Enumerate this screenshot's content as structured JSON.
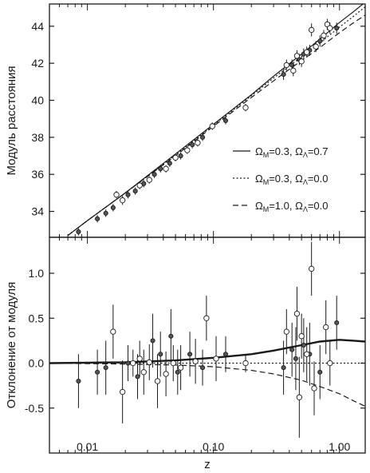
{
  "figure": {
    "xlabel": "z",
    "x_scale": "log",
    "xlim": [
      0.005,
      1.6
    ],
    "x_ticks": [
      0.01,
      0.1,
      1.0
    ],
    "x_tick_labels": [
      "0.01",
      "0.10",
      "1.00"
    ],
    "colors": {
      "axes": "#1a1a1a",
      "filled_marker": "#555555",
      "open_marker": "#ffffff"
    }
  },
  "chart_data": [
    {
      "type": "scatter",
      "ylabel": "Модуль  расстояния",
      "ylim": [
        32.6,
        45.2
      ],
      "y_ticks": [
        34,
        36,
        38,
        40,
        42,
        44
      ],
      "y_tick_labels": [
        "34",
        "36",
        "38",
        "40",
        "42",
        "44"
      ],
      "legend_position": "right",
      "legend": [
        {
          "name": "ΩM=0.3,  ΩΛ=0.7",
          "text_main": "Ω",
          "sub1": "M",
          "mid": "=0.3,  Ω",
          "sub2": "Λ",
          "tail": "=0.7",
          "style": "solid"
        },
        {
          "name": "ΩM=0.3,  ΩΛ=0.0",
          "text_main": "Ω",
          "sub1": "M",
          "mid": "=0.3,  Ω",
          "sub2": "Λ",
          "tail": "=0.0",
          "style": "dotted"
        },
        {
          "name": "ΩM=1.0,  ΩΛ=0.0",
          "text_main": "Ω",
          "sub1": "M",
          "mid": "=1.0,  Ω",
          "sub2": "Λ",
          "tail": "=0.0",
          "style": "dashed"
        }
      ],
      "model_curves": [
        {
          "style": "solid",
          "x": [
            0.007,
            0.01,
            0.02,
            0.05,
            0.1,
            0.2,
            0.3,
            0.5,
            0.7,
            1.0,
            1.3,
            1.6
          ],
          "y": [
            32.7,
            33.5,
            35.0,
            37.1,
            38.7,
            40.3,
            41.3,
            42.5,
            43.3,
            44.2,
            44.8,
            45.3
          ]
        },
        {
          "style": "dotted",
          "x": [
            0.007,
            0.01,
            0.02,
            0.05,
            0.1,
            0.2,
            0.3,
            0.5,
            0.7,
            1.0,
            1.3,
            1.6
          ],
          "y": [
            32.7,
            33.5,
            35.0,
            37.05,
            38.66,
            40.24,
            41.2,
            42.36,
            43.1,
            43.95,
            44.55,
            45.05
          ]
        },
        {
          "style": "dashed",
          "x": [
            0.007,
            0.01,
            0.02,
            0.05,
            0.1,
            0.2,
            0.3,
            0.5,
            0.7,
            1.0,
            1.3,
            1.6
          ],
          "y": [
            32.7,
            33.5,
            35.0,
            37.0,
            38.6,
            40.15,
            41.05,
            42.15,
            42.85,
            43.65,
            44.2,
            44.6
          ]
        }
      ],
      "points_open": [
        {
          "x": 0.017,
          "y": 34.9,
          "err": 0.2
        },
        {
          "x": 0.019,
          "y": 34.6,
          "err": 0.25
        },
        {
          "x": 0.026,
          "y": 35.4,
          "err": 0.2
        },
        {
          "x": 0.031,
          "y": 35.7,
          "err": 0.2
        },
        {
          "x": 0.042,
          "y": 36.3,
          "err": 0.2
        },
        {
          "x": 0.05,
          "y": 36.9,
          "err": 0.2
        },
        {
          "x": 0.062,
          "y": 37.3,
          "err": 0.2
        },
        {
          "x": 0.075,
          "y": 37.7,
          "err": 0.2
        },
        {
          "x": 0.098,
          "y": 38.6,
          "err": 0.2
        },
        {
          "x": 0.18,
          "y": 39.6,
          "err": 0.2
        },
        {
          "x": 0.38,
          "y": 41.9,
          "err": 0.3
        },
        {
          "x": 0.43,
          "y": 41.6,
          "err": 0.3
        },
        {
          "x": 0.46,
          "y": 42.4,
          "err": 0.3
        },
        {
          "x": 0.5,
          "y": 42.1,
          "err": 0.3
        },
        {
          "x": 0.55,
          "y": 42.6,
          "err": 0.3
        },
        {
          "x": 0.6,
          "y": 43.8,
          "err": 0.35
        },
        {
          "x": 0.65,
          "y": 42.9,
          "err": 0.3
        },
        {
          "x": 0.75,
          "y": 43.5,
          "err": 0.3
        },
        {
          "x": 0.8,
          "y": 44.1,
          "err": 0.3
        },
        {
          "x": 0.84,
          "y": 43.9,
          "err": 0.3
        }
      ],
      "points_filled": [
        {
          "x": 0.0085,
          "y": 32.9,
          "err": 0.2
        },
        {
          "x": 0.012,
          "y": 33.6,
          "err": 0.2
        },
        {
          "x": 0.014,
          "y": 33.9,
          "err": 0.2
        },
        {
          "x": 0.016,
          "y": 34.2,
          "err": 0.2
        },
        {
          "x": 0.021,
          "y": 34.9,
          "err": 0.2
        },
        {
          "x": 0.024,
          "y": 35.1,
          "err": 0.2
        },
        {
          "x": 0.028,
          "y": 35.5,
          "err": 0.2
        },
        {
          "x": 0.034,
          "y": 36.0,
          "err": 0.2
        },
        {
          "x": 0.038,
          "y": 36.3,
          "err": 0.2
        },
        {
          "x": 0.045,
          "y": 36.6,
          "err": 0.2
        },
        {
          "x": 0.055,
          "y": 37.0,
          "err": 0.2
        },
        {
          "x": 0.068,
          "y": 37.6,
          "err": 0.2
        },
        {
          "x": 0.082,
          "y": 38.0,
          "err": 0.2
        },
        {
          "x": 0.125,
          "y": 38.9,
          "err": 0.2
        },
        {
          "x": 0.36,
          "y": 41.4,
          "err": 0.3
        },
        {
          "x": 0.42,
          "y": 41.9,
          "err": 0.3
        },
        {
          "x": 0.48,
          "y": 42.2,
          "err": 0.3
        },
        {
          "x": 0.52,
          "y": 42.5,
          "err": 0.3
        },
        {
          "x": 0.58,
          "y": 42.7,
          "err": 0.3
        },
        {
          "x": 0.7,
          "y": 43.2,
          "err": 0.3
        },
        {
          "x": 0.95,
          "y": 43.9,
          "err": 0.3
        }
      ]
    },
    {
      "type": "scatter",
      "ylabel": "Отклонение  от  модуля",
      "ylim": [
        -1.0,
        1.4
      ],
      "y_ticks": [
        -0.5,
        0.0,
        0.5,
        1.0
      ],
      "y_tick_labels": [
        "-0.5",
        "0.0",
        "0.5",
        "1.0"
      ],
      "model_curves": [
        {
          "style": "solid",
          "x": [
            0.005,
            0.01,
            0.02,
            0.05,
            0.1,
            0.2,
            0.3,
            0.5,
            0.7,
            1.0,
            1.3,
            1.6
          ],
          "y": [
            0.0,
            0.005,
            0.01,
            0.03,
            0.06,
            0.1,
            0.14,
            0.2,
            0.24,
            0.26,
            0.25,
            0.24
          ]
        },
        {
          "style": "dotted",
          "x": [
            0.005,
            1.6
          ],
          "y": [
            0.0,
            0.0
          ]
        },
        {
          "style": "dashed",
          "x": [
            0.005,
            0.01,
            0.02,
            0.05,
            0.1,
            0.2,
            0.3,
            0.5,
            0.7,
            1.0,
            1.3,
            1.6
          ],
          "y": [
            0.0,
            -0.005,
            -0.01,
            -0.02,
            -0.04,
            -0.08,
            -0.12,
            -0.19,
            -0.26,
            -0.34,
            -0.42,
            -0.48
          ]
        }
      ],
      "points_open": [
        {
          "x": 0.016,
          "y": 0.35,
          "err": 0.3
        },
        {
          "x": 0.019,
          "y": -0.32,
          "err": 0.35
        },
        {
          "x": 0.023,
          "y": 0.0,
          "err": 0.15
        },
        {
          "x": 0.026,
          "y": 0.05,
          "err": 0.2
        },
        {
          "x": 0.028,
          "y": -0.1,
          "err": 0.25
        },
        {
          "x": 0.031,
          "y": 0.01,
          "err": 0.2
        },
        {
          "x": 0.036,
          "y": -0.2,
          "err": 0.3
        },
        {
          "x": 0.042,
          "y": -0.12,
          "err": 0.25
        },
        {
          "x": 0.048,
          "y": 0.0,
          "err": 0.2
        },
        {
          "x": 0.055,
          "y": -0.05,
          "err": 0.25
        },
        {
          "x": 0.072,
          "y": 0.02,
          "err": 0.25
        },
        {
          "x": 0.088,
          "y": 0.5,
          "err": 0.25
        },
        {
          "x": 0.105,
          "y": 0.05,
          "err": 0.25
        },
        {
          "x": 0.18,
          "y": 0.0,
          "err": 0.1
        },
        {
          "x": 0.38,
          "y": 0.35,
          "err": 0.25
        },
        {
          "x": 0.46,
          "y": 0.55,
          "err": 0.3
        },
        {
          "x": 0.48,
          "y": -0.38,
          "err": 0.45
        },
        {
          "x": 0.5,
          "y": 0.3,
          "err": 0.25
        },
        {
          "x": 0.55,
          "y": 0.1,
          "err": 0.3
        },
        {
          "x": 0.6,
          "y": 1.05,
          "err": 0.3
        },
        {
          "x": 0.63,
          "y": -0.28,
          "err": 0.3
        },
        {
          "x": 0.78,
          "y": 0.4,
          "err": 0.3
        },
        {
          "x": 0.84,
          "y": 0.0,
          "err": 0.25
        }
      ],
      "points_filled": [
        {
          "x": 0.0085,
          "y": -0.2,
          "err": 0.3
        },
        {
          "x": 0.012,
          "y": -0.1,
          "err": 0.25
        },
        {
          "x": 0.014,
          "y": -0.05,
          "err": 0.3
        },
        {
          "x": 0.021,
          "y": 0.0,
          "err": 0.2
        },
        {
          "x": 0.025,
          "y": -0.15,
          "err": 0.25
        },
        {
          "x": 0.033,
          "y": 0.25,
          "err": 0.3
        },
        {
          "x": 0.038,
          "y": 0.1,
          "err": 0.25
        },
        {
          "x": 0.046,
          "y": 0.3,
          "err": 0.3
        },
        {
          "x": 0.052,
          "y": -0.1,
          "err": 0.25
        },
        {
          "x": 0.065,
          "y": 0.1,
          "err": 0.25
        },
        {
          "x": 0.082,
          "y": -0.05,
          "err": 0.2
        },
        {
          "x": 0.125,
          "y": 0.1,
          "err": 0.2
        },
        {
          "x": 0.36,
          "y": -0.05,
          "err": 0.3
        },
        {
          "x": 0.42,
          "y": 0.15,
          "err": 0.3
        },
        {
          "x": 0.45,
          "y": 0.05,
          "err": 0.35
        },
        {
          "x": 0.52,
          "y": 0.2,
          "err": 0.3
        },
        {
          "x": 0.58,
          "y": 0.1,
          "err": 0.35
        },
        {
          "x": 0.7,
          "y": -0.1,
          "err": 0.3
        },
        {
          "x": 0.95,
          "y": 0.45,
          "err": 0.3
        }
      ]
    }
  ]
}
